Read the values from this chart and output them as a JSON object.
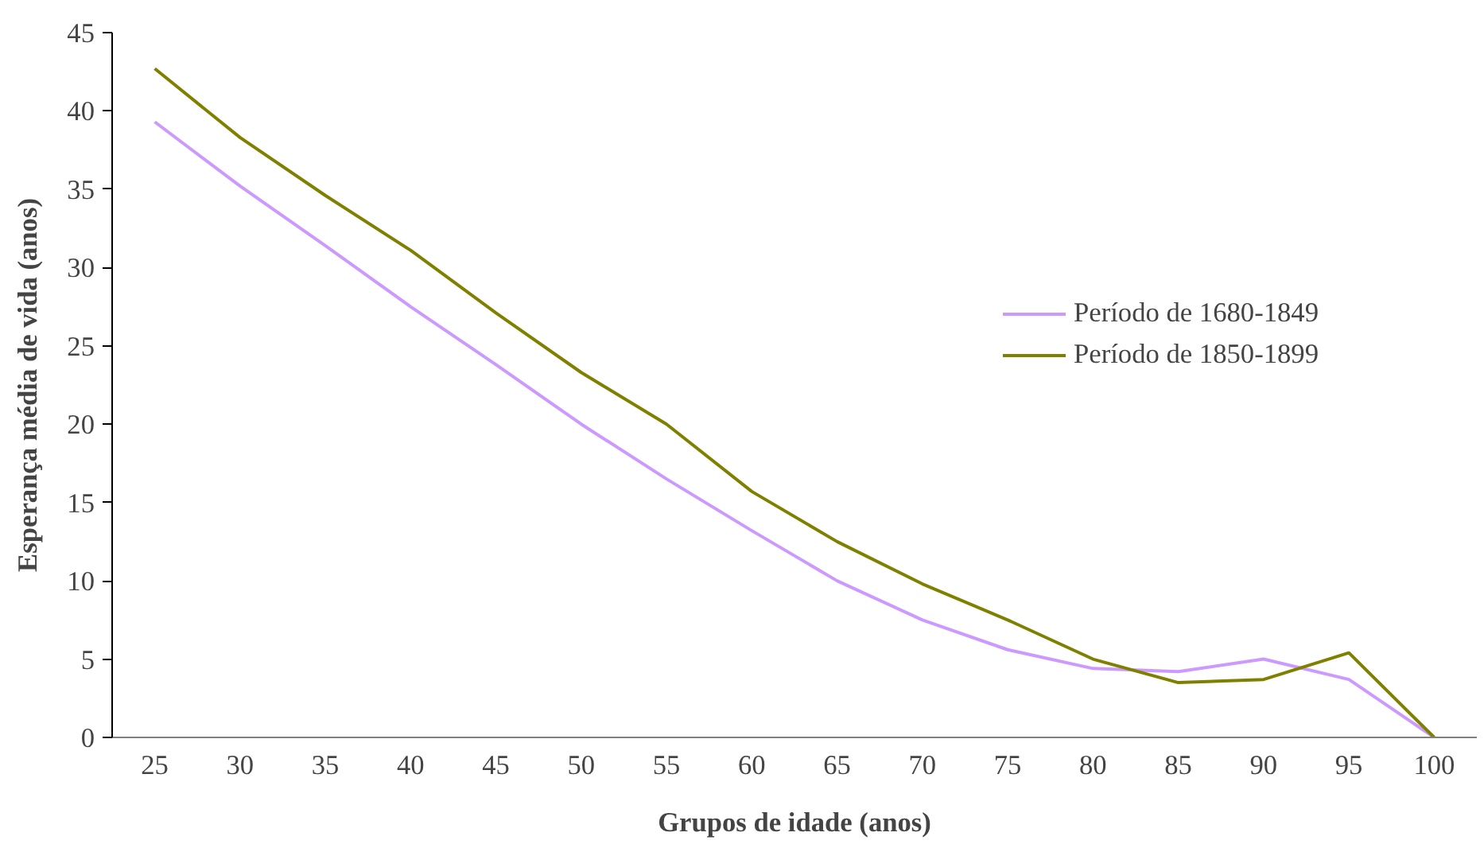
{
  "chart_data": {
    "type": "line",
    "xlabel": "Grupos de idade (anos)",
    "ylabel": "Esperança média de vida (anos)",
    "categories": [
      "25",
      "30",
      "35",
      "40",
      "45",
      "50",
      "55",
      "60",
      "65",
      "70",
      "75",
      "80",
      "85",
      "90",
      "95",
      "100"
    ],
    "ylim": [
      0,
      45
    ],
    "yticks": [
      0,
      5,
      10,
      15,
      20,
      25,
      30,
      35,
      40,
      45
    ],
    "grid": false,
    "legend": "right",
    "series": [
      {
        "name": "Período de 1680-1849",
        "color": "#cc99ff",
        "values": [
          39.3,
          35.2,
          31.4,
          27.5,
          23.8,
          20.0,
          16.5,
          13.2,
          10.0,
          7.5,
          5.6,
          4.4,
          4.2,
          5.0,
          3.7,
          0
        ]
      },
      {
        "name": "Período de 1850-1899",
        "color": "#808000",
        "values": [
          42.7,
          38.3,
          34.6,
          31.1,
          27.1,
          23.3,
          20.0,
          15.7,
          12.5,
          9.8,
          7.5,
          5.0,
          3.5,
          3.7,
          5.4,
          0
        ]
      }
    ]
  }
}
